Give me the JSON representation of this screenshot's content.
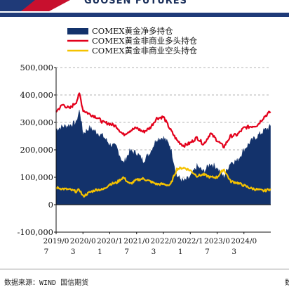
{
  "brand": {
    "name": "GUOSEN FUTURES"
  },
  "colors": {
    "navy": "#13326b",
    "red": "#e3001b",
    "yellow": "#f5c200",
    "brand_blue": "#1f3a78",
    "brand_red": "#c8102e"
  },
  "footer": {
    "source": "数据来源：WIND 国信期货",
    "right_fragment": "数"
  },
  "chart_data": {
    "type": "area",
    "title": "",
    "xlabel": "",
    "ylabel": "",
    "ylim": [
      -100000,
      500000
    ],
    "yticks": [
      -100000,
      0,
      100000,
      200000,
      300000,
      400000,
      500000
    ],
    "ytick_labels": [
      "-100,000",
      "0",
      "100,000",
      "200,000",
      "300,000",
      "400,000",
      "500,000"
    ],
    "xlim": [
      "2019-07",
      "2024-11"
    ],
    "xticks": [
      "2019-07",
      "2020-03",
      "2020-11",
      "2021-07",
      "2022-03",
      "2022-11",
      "2023-07",
      "2024-03"
    ],
    "xtick_labels": [
      [
        "2019/0",
        "7"
      ],
      [
        "2020/0",
        "3"
      ],
      [
        "2020/1",
        "1"
      ],
      [
        "2021/0",
        "7"
      ],
      [
        "2022/0",
        "3"
      ],
      [
        "2022/1",
        "1"
      ],
      [
        "2023/0",
        "7"
      ],
      [
        "2024/0",
        "3"
      ]
    ],
    "grid": "horizontal dashed",
    "legend_position": "top-left",
    "series": [
      {
        "name": "COMEX黄金净多持仓",
        "style": "area",
        "color": "#13326b",
        "x": [
          "2019-07",
          "2019-09",
          "2019-11",
          "2020-01",
          "2020-02",
          "2020-03",
          "2020-05",
          "2020-07",
          "2020-09",
          "2020-11",
          "2021-01",
          "2021-03",
          "2021-05",
          "2021-07",
          "2021-09",
          "2021-11",
          "2022-01",
          "2022-03",
          "2022-05",
          "2022-07",
          "2022-09",
          "2022-11",
          "2023-01",
          "2023-03",
          "2023-05",
          "2023-07",
          "2023-09",
          "2023-11",
          "2024-01",
          "2024-03",
          "2024-05",
          "2024-07",
          "2024-09",
          "2024-11"
        ],
        "values": [
          275000,
          285000,
          290000,
          300000,
          345000,
          260000,
          280000,
          265000,
          250000,
          220000,
          210000,
          150000,
          195000,
          190000,
          160000,
          190000,
          240000,
          245000,
          215000,
          105000,
          85000,
          100000,
          140000,
          120000,
          150000,
          135000,
          100000,
          155000,
          160000,
          200000,
          230000,
          250000,
          270000,
          285000
        ]
      },
      {
        "name": "COMEX黄金非商业多头持仓",
        "style": "line",
        "color": "#e3001b",
        "x": [
          "2019-07",
          "2019-09",
          "2019-11",
          "2020-01",
          "2020-02",
          "2020-03",
          "2020-05",
          "2020-07",
          "2020-09",
          "2020-11",
          "2021-01",
          "2021-03",
          "2021-05",
          "2021-07",
          "2021-09",
          "2021-11",
          "2022-01",
          "2022-03",
          "2022-05",
          "2022-07",
          "2022-09",
          "2022-11",
          "2023-01",
          "2023-03",
          "2023-05",
          "2023-07",
          "2023-09",
          "2023-11",
          "2024-01",
          "2024-03",
          "2024-05",
          "2024-07",
          "2024-09",
          "2024-11"
        ],
        "values": [
          340000,
          365000,
          350000,
          375000,
          405000,
          345000,
          330000,
          320000,
          300000,
          295000,
          285000,
          255000,
          270000,
          280000,
          265000,
          280000,
          315000,
          320000,
          275000,
          235000,
          215000,
          225000,
          245000,
          220000,
          260000,
          235000,
          210000,
          250000,
          255000,
          280000,
          285000,
          290000,
          320000,
          340000
        ]
      },
      {
        "name": "COMEX黄金非商业空头持仓",
        "style": "line",
        "color": "#f5c200",
        "x": [
          "2019-07",
          "2019-09",
          "2019-11",
          "2020-01",
          "2020-02",
          "2020-03",
          "2020-05",
          "2020-07",
          "2020-09",
          "2020-11",
          "2021-01",
          "2021-03",
          "2021-05",
          "2021-07",
          "2021-09",
          "2021-11",
          "2022-01",
          "2022-03",
          "2022-05",
          "2022-07",
          "2022-09",
          "2022-11",
          "2023-01",
          "2023-03",
          "2023-05",
          "2023-07",
          "2023-09",
          "2023-11",
          "2024-01",
          "2024-03",
          "2024-05",
          "2024-07",
          "2024-09",
          "2024-11"
        ],
        "values": [
          62000,
          58000,
          55000,
          48000,
          55000,
          30000,
          45000,
          55000,
          55000,
          75000,
          80000,
          100000,
          75000,
          90000,
          95000,
          85000,
          75000,
          75000,
          70000,
          130000,
          135000,
          125000,
          105000,
          110000,
          100000,
          100000,
          130000,
          85000,
          80000,
          70000,
          60000,
          55000,
          50000,
          58000
        ]
      }
    ]
  }
}
